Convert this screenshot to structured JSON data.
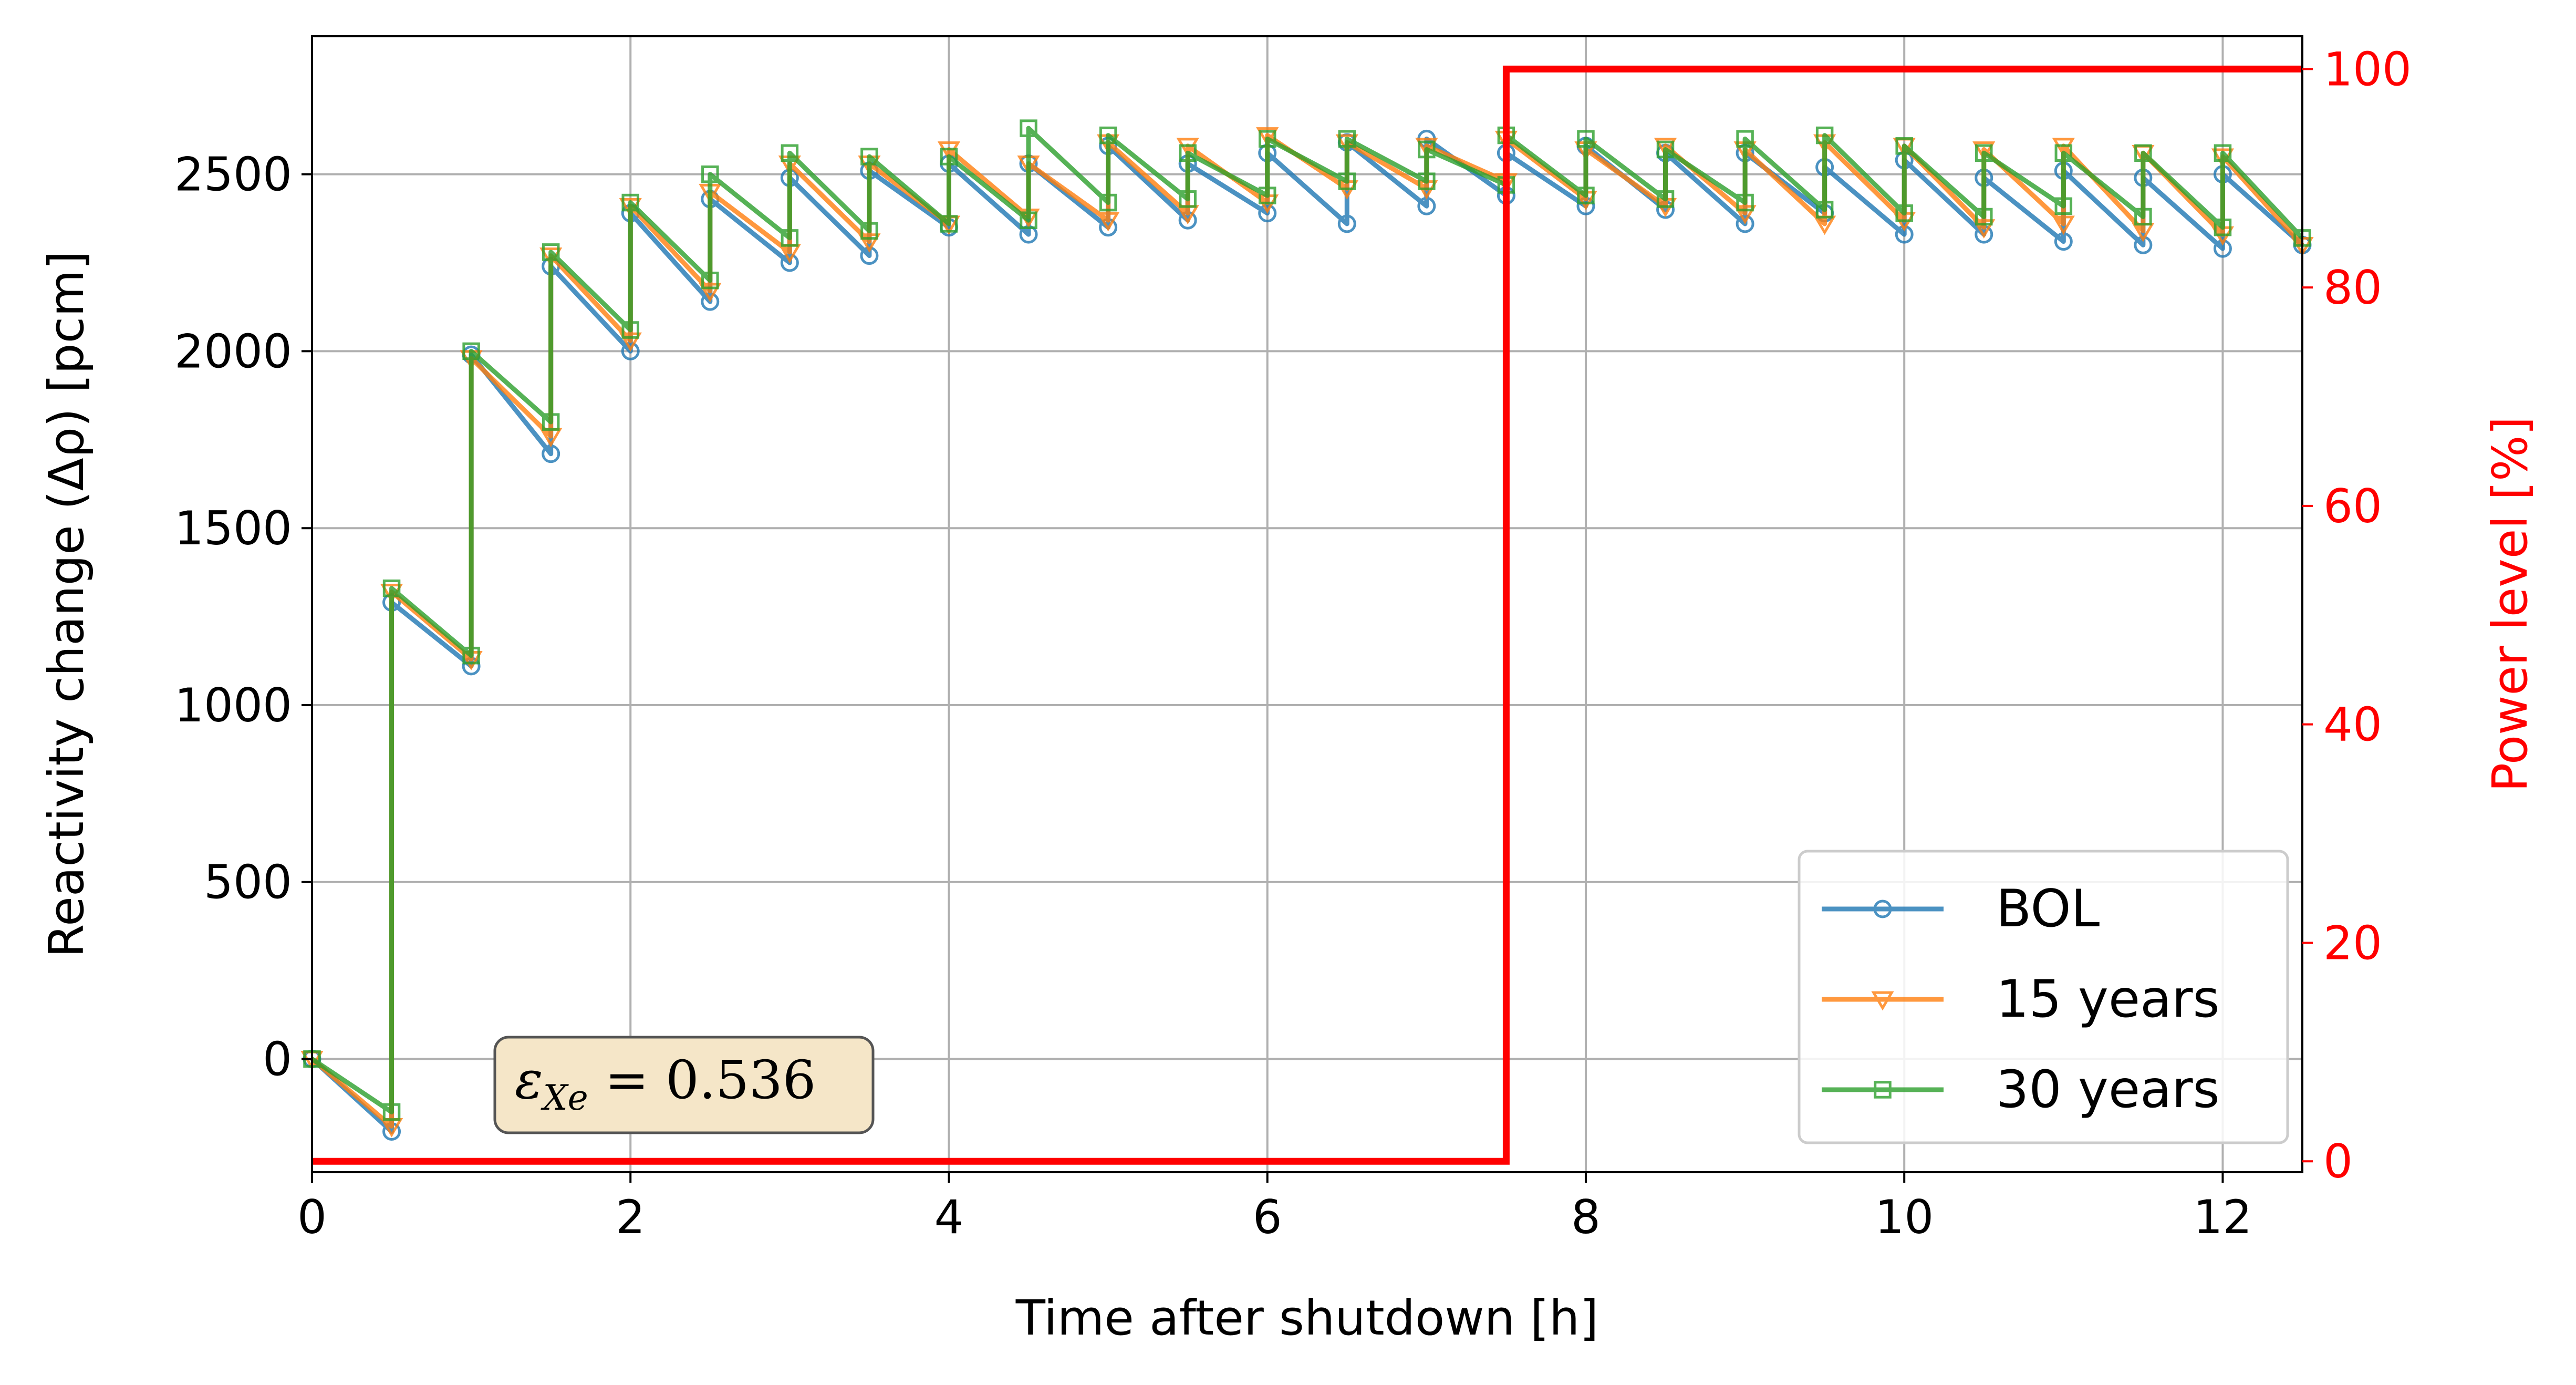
{
  "chart_data": {
    "type": "line",
    "xlabel": "Time after shutdown [h]",
    "ylabel": "Reactivity change (Δρ) [pcm]",
    "ylabel_right": "Power level [%]",
    "xlim": [
      0,
      12.5
    ],
    "ylim": [
      -320,
      2890
    ],
    "ylim_right": [
      -1,
      103
    ],
    "x_ticks": [
      0,
      2,
      4,
      6,
      8,
      10,
      12
    ],
    "y_ticks": [
      0,
      500,
      1000,
      1500,
      2000,
      2500
    ],
    "y_ticks_right": [
      0,
      20,
      40,
      60,
      80,
      100
    ],
    "grid": true,
    "legend_position": "lower-right",
    "annotation": {
      "symbol": "ε",
      "subscript": "Xe",
      "value_text": " = 0.536"
    },
    "colors": {
      "bol": "#1f77b4",
      "y15": "#ff7f0e",
      "y30": "#2ca02c",
      "power": "#ff0000",
      "annotation_fill": "#f5e6c8"
    },
    "series": [
      {
        "name": "BOL",
        "marker": "circle",
        "x": [
          0,
          0.5,
          0.5,
          1,
          1,
          1.5,
          1.5,
          2,
          2,
          2.5,
          2.5,
          3,
          3,
          3.5,
          3.5,
          4,
          4,
          4.5,
          4.5,
          5,
          5,
          5.5,
          5.5,
          6,
          6,
          6.5,
          6.5,
          7,
          7,
          7.5,
          7.5,
          8,
          8,
          8.5,
          8.5,
          9,
          9,
          9.5,
          9.5,
          10,
          10,
          10.5,
          10.5,
          11,
          11,
          11.5,
          11.5,
          12,
          12,
          12.5
        ],
        "y": [
          0,
          -205,
          1290,
          1110,
          1990,
          1710,
          2240,
          2000,
          2390,
          2140,
          2430,
          2250,
          2490,
          2270,
          2510,
          2350,
          2530,
          2330,
          2530,
          2350,
          2580,
          2370,
          2530,
          2390,
          2560,
          2360,
          2590,
          2410,
          2600,
          2440,
          2560,
          2410,
          2580,
          2400,
          2560,
          2360,
          2560,
          2390,
          2520,
          2330,
          2540,
          2330,
          2490,
          2310,
          2510,
          2300,
          2490,
          2290,
          2500,
          2300
        ]
      },
      {
        "name": "15 years",
        "marker": "triangle-down",
        "x": [
          0,
          0.5,
          0.5,
          1,
          1,
          1.5,
          1.5,
          2,
          2,
          2.5,
          2.5,
          3,
          3,
          3.5,
          3.5,
          4,
          4,
          4.5,
          4.5,
          5,
          5,
          5.5,
          5.5,
          6,
          6,
          6.5,
          6.5,
          7,
          7,
          7.5,
          7.5,
          8,
          8,
          8.5,
          8.5,
          9,
          9,
          9.5,
          9.5,
          10,
          10,
          10.5,
          10.5,
          11,
          11,
          11.5,
          11.5,
          12,
          12,
          12.5
        ],
        "y": [
          0,
          -190,
          1320,
          1130,
          1980,
          1760,
          2270,
          2030,
          2410,
          2170,
          2450,
          2280,
          2530,
          2310,
          2530,
          2360,
          2570,
          2380,
          2530,
          2370,
          2590,
          2390,
          2580,
          2420,
          2610,
          2460,
          2590,
          2460,
          2580,
          2480,
          2600,
          2430,
          2570,
          2410,
          2580,
          2390,
          2570,
          2360,
          2590,
          2370,
          2580,
          2350,
          2570,
          2360,
          2580,
          2340,
          2560,
          2330,
          2550,
          2300
        ]
      },
      {
        "name": "30 years",
        "marker": "square",
        "x": [
          0,
          0.5,
          0.5,
          1,
          1,
          1.5,
          1.5,
          2,
          2,
          2.5,
          2.5,
          3,
          3,
          3.5,
          3.5,
          4,
          4,
          4.5,
          4.5,
          5,
          5,
          5.5,
          5.5,
          6,
          6,
          6.5,
          6.5,
          7,
          7,
          7.5,
          7.5,
          8,
          8,
          8.5,
          8.5,
          9,
          9,
          9.5,
          9.5,
          10,
          10,
          10.5,
          10.5,
          11,
          11,
          11.5,
          11.5,
          12,
          12,
          12.5
        ],
        "y": [
          0,
          -150,
          1330,
          1140,
          2000,
          1800,
          2280,
          2060,
          2420,
          2200,
          2500,
          2320,
          2560,
          2340,
          2550,
          2360,
          2550,
          2370,
          2630,
          2420,
          2610,
          2430,
          2560,
          2440,
          2600,
          2480,
          2600,
          2480,
          2570,
          2470,
          2610,
          2440,
          2600,
          2430,
          2570,
          2420,
          2600,
          2400,
          2610,
          2390,
          2580,
          2380,
          2560,
          2410,
          2560,
          2380,
          2560,
          2350,
          2560,
          2320
        ]
      },
      {
        "name": "",
        "axis": "right",
        "type": "step",
        "x": [
          0,
          7.5,
          7.5,
          12.5
        ],
        "y": [
          0,
          0,
          100,
          100
        ]
      }
    ]
  }
}
